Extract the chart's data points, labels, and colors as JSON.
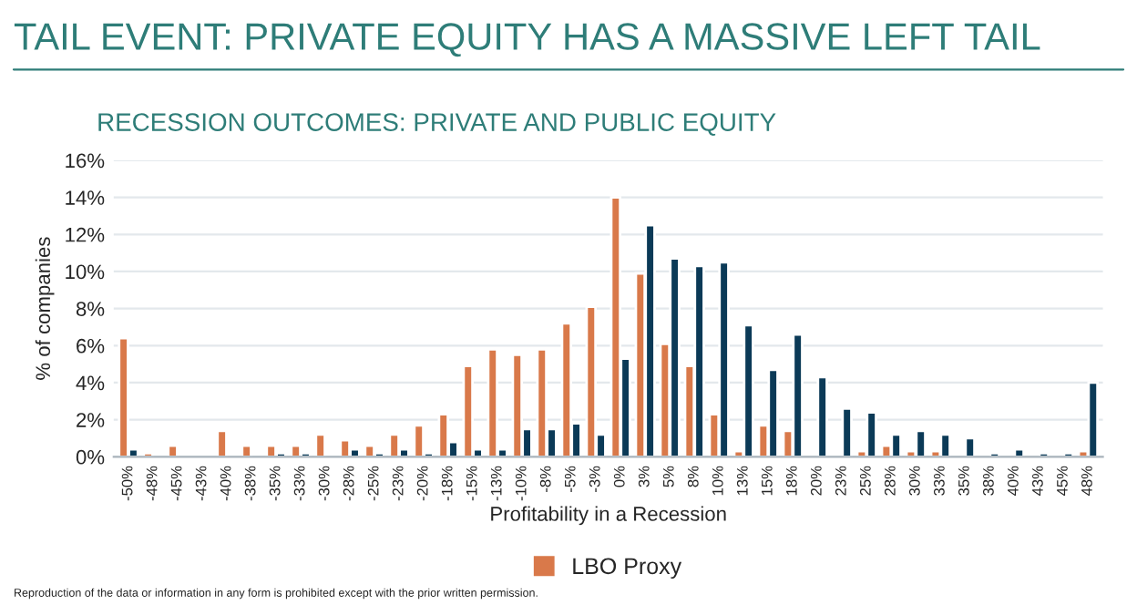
{
  "chart_data": {
    "type": "bar",
    "title": "TAIL EVENT: PRIVATE EQUITY HAS A MASSIVE LEFT TAIL",
    "subtitle": "RECESSION OUTCOMES: PRIVATE AND PUBLIC EQUITY",
    "xlabel": "Profitability in a Recession",
    "ylabel": "% of companies",
    "categories": [
      "-50%",
      "-48%",
      "-45%",
      "-43%",
      "-40%",
      "-38%",
      "-35%",
      "-33%",
      "-30%",
      "-28%",
      "-25%",
      "-23%",
      "-20%",
      "-18%",
      "-15%",
      "-13%",
      "-10%",
      "-8%",
      "-5%",
      "-3%",
      "0%",
      "3%",
      "5%",
      "8%",
      "10%",
      "13%",
      "15%",
      "18%",
      "20%",
      "23%",
      "25%",
      "28%",
      "30%",
      "33%",
      "35%",
      "38%",
      "40%",
      "43%",
      "45%",
      "48%"
    ],
    "series": [
      {
        "name": "LBO Proxy",
        "color": "#d9794a",
        "values": [
          6.4,
          0.2,
          0.6,
          null,
          1.4,
          0.6,
          0.6,
          0.6,
          1.2,
          0.9,
          0.6,
          1.2,
          1.7,
          2.3,
          4.9,
          5.8,
          5.5,
          5.8,
          7.2,
          8.1,
          14.0,
          9.9,
          6.1,
          4.9,
          2.3,
          0.3,
          1.7,
          1.4,
          null,
          null,
          0.3,
          0.6,
          0.3,
          0.3,
          null,
          null,
          null,
          null,
          null,
          0.3
        ]
      },
      {
        "color": "#0b3a57",
        "values": [
          0.4,
          null,
          null,
          null,
          null,
          null,
          0.2,
          0.2,
          null,
          0.4,
          0.2,
          0.4,
          0.2,
          0.8,
          0.4,
          0.4,
          1.5,
          1.5,
          1.8,
          1.2,
          5.3,
          12.5,
          10.7,
          10.3,
          10.5,
          7.1,
          4.7,
          6.6,
          4.3,
          2.6,
          2.4,
          1.2,
          1.4,
          1.2,
          1.0,
          0.2,
          0.4,
          0.2,
          0.2,
          4.0
        ]
      }
    ],
    "ylim": [
      0,
      16
    ],
    "yticks": [
      {
        "value": 0,
        "label": "0%"
      },
      {
        "value": 2,
        "label": "2%"
      },
      {
        "value": 4,
        "label": "4%"
      },
      {
        "value": 6,
        "label": "6%"
      },
      {
        "value": 8,
        "label": "8%"
      },
      {
        "value": 10,
        "label": "10%"
      },
      {
        "value": 12,
        "label": "12%"
      },
      {
        "value": 14,
        "label": "14%"
      },
      {
        "value": 16,
        "label": "16%"
      }
    ],
    "grid": "y",
    "legend": "bottom",
    "annotations": [
      "Reproduction of the data or information in any form is prohibited except with the prior written permission."
    ]
  }
}
